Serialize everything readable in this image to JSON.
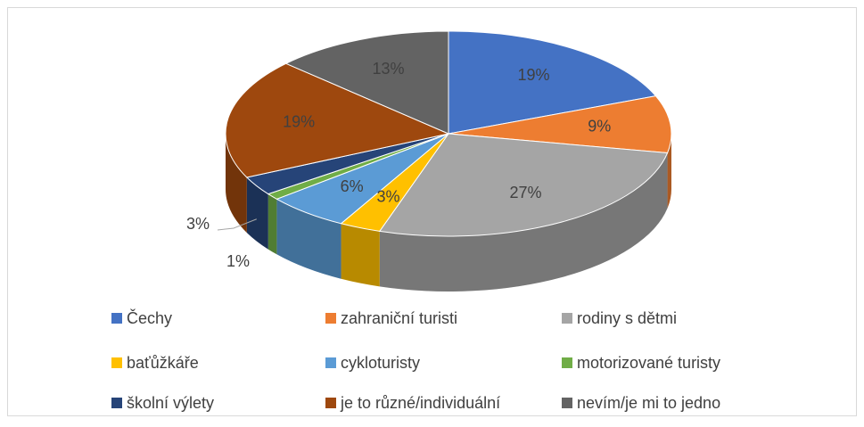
{
  "chart_data": {
    "type": "pie3d",
    "categories": [
      "Čechy",
      "zahraniční turisti",
      "rodiny s dětmi",
      "baťůžkáře",
      "cykloturisty",
      "motorizované turisty",
      "školní výlety",
      "je to různé/individuální",
      "nevím/je mi to jedno"
    ],
    "values": [
      19,
      9,
      27,
      3,
      6,
      1,
      3,
      19,
      13
    ],
    "value_labels": [
      "19%",
      "9%",
      "27%",
      "3%",
      "6%",
      "1%",
      "3%",
      "19%",
      "13%"
    ],
    "colors": [
      "#4472c4",
      "#ed7d31",
      "#a5a5a5",
      "#ffc000",
      "#5b9bd5",
      "#70ad47",
      "#264478",
      "#9e480e",
      "#636363"
    ]
  }
}
